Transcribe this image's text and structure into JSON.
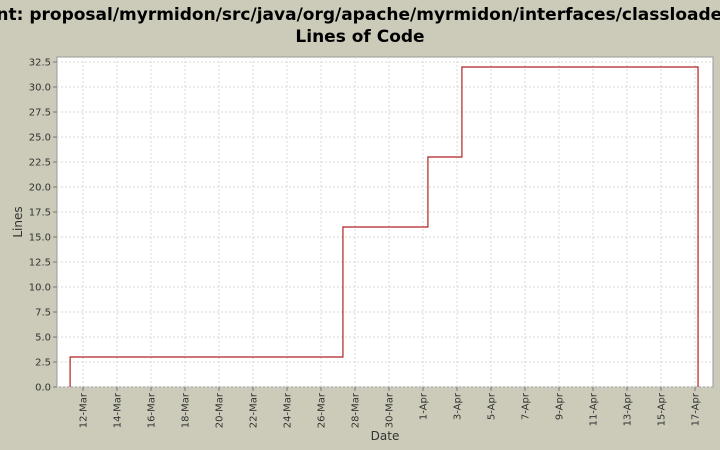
{
  "chart_data": {
    "type": "step",
    "title": [
      "Ant: proposal/myrmidon/src/java/org/apache/myrmidon/interfaces/classloader/",
      "Lines of Code"
    ],
    "x_label": "Date",
    "y_label": "Lines",
    "series": [
      {
        "name": "Lines",
        "color": "#b22222",
        "x": [
          11.24,
          11.24,
          27.29,
          32.29,
          34.29,
          48.18,
          48.18
        ],
        "values": [
          0,
          3,
          16,
          23,
          32,
          32,
          0
        ]
      }
    ],
    "xlim": [
      10.47,
      49.06
    ],
    "xticks": [
      {
        "value": 12,
        "label": "12-Mar"
      },
      {
        "value": 14,
        "label": "14-Mar"
      },
      {
        "value": 16,
        "label": "16-Mar"
      },
      {
        "value": 18,
        "label": "18-Mar"
      },
      {
        "value": 20,
        "label": "20-Mar"
      },
      {
        "value": 22,
        "label": "22-Mar"
      },
      {
        "value": 24,
        "label": "24-Mar"
      },
      {
        "value": 26,
        "label": "26-Mar"
      },
      {
        "value": 28,
        "label": "28-Mar"
      },
      {
        "value": 30,
        "label": "30-Mar"
      },
      {
        "value": 32,
        "label": "1-Apr"
      },
      {
        "value": 34,
        "label": "3-Apr"
      },
      {
        "value": 36,
        "label": "5-Apr"
      },
      {
        "value": 38,
        "label": "7-Apr"
      },
      {
        "value": 40,
        "label": "9-Apr"
      },
      {
        "value": 42,
        "label": "11-Apr"
      },
      {
        "value": 44,
        "label": "13-Apr"
      },
      {
        "value": 46,
        "label": "15-Apr"
      },
      {
        "value": 48,
        "label": "17-Apr"
      }
    ],
    "ylim": [
      0,
      33
    ],
    "yticks": [
      {
        "value": 0,
        "label": "0.0"
      },
      2.5,
      {
        "value": 5,
        "label": "5.0"
      },
      7.5,
      {
        "value": 10,
        "label": "10.0"
      },
      12.5,
      {
        "value": 15,
        "label": "15.0"
      },
      17.5,
      {
        "value": 20,
        "label": "20.0"
      },
      22.5,
      {
        "value": 25,
        "label": "25.0"
      },
      27.5,
      {
        "value": 30,
        "label": "30.0"
      },
      32.5
    ],
    "grid": true
  }
}
